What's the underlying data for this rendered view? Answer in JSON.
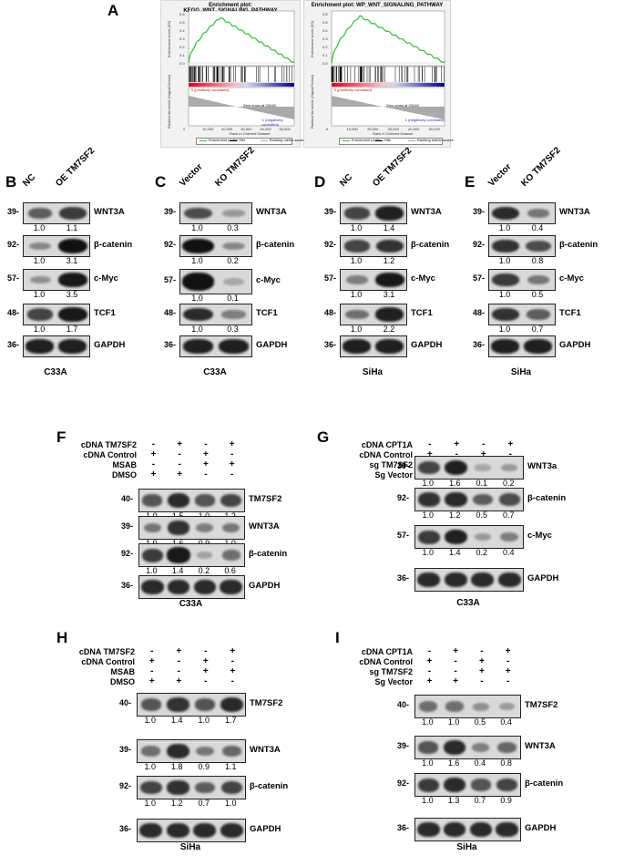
{
  "panels": {
    "A": "A",
    "B": "B",
    "C": "C",
    "D": "D",
    "E": "E",
    "F": "F",
    "G": "G",
    "H": "H",
    "I": "I"
  },
  "gsea": [
    {
      "title": "Enrichment plot: KEGG_WNT_SIGNALING_PATHWAY",
      "ylabel_top": "Enrichment score (ES)",
      "ylabel_bottom": "Ranked list metric (Signal2Noise)",
      "xlabel": "Rank in Ordered Dataset",
      "pos_label": "'0 (positively correlated)",
      "neg_label": "'1 (negatively correlated)",
      "zero_label": "Zero cross at 23418",
      "xticks": [
        "0",
        "10,000",
        "20,000",
        "30,000",
        "40,000",
        "50,000"
      ],
      "yticks_top": [
        "0.6",
        "0.5",
        "0.4",
        "0.3",
        "0.2",
        "0.1",
        "0.0"
      ],
      "legend": [
        "Enrichment profile",
        "Hits",
        "Ranking metric scores"
      ]
    },
    {
      "title": "Enrichment plot: WP_WNT_SIGNALING_PATHWAY",
      "ylabel_top": "Enrichment score (ES)",
      "ylabel_bottom": "Ranked list metric (Signal2Noise)",
      "xlabel": "Rank in Ordered Dataset",
      "pos_label": "'0 (positively correlated)",
      "neg_label": "'1 (negatively correlated)",
      "zero_label": "Zero cross at 23418",
      "xticks": [
        "0",
        "10,000",
        "20,000",
        "30,000",
        "40,000",
        "50,000"
      ],
      "yticks_top": [
        "0.6",
        "0.5",
        "0.4",
        "0.3",
        "0.2",
        "0.1",
        "0.0"
      ],
      "legend": [
        "Enrichment profile",
        "Hits",
        "Ranking metric scores"
      ]
    }
  ],
  "blotsBE": [
    {
      "cols": [
        "NC",
        "OE TM7SF2"
      ],
      "cell": "C33A",
      "rows": [
        {
          "mw": "39-",
          "protein": "WNT3A",
          "vals": [
            "1.0",
            "1.1"
          ],
          "lvl": [
            0.55,
            0.75
          ]
        },
        {
          "mw": "92-",
          "protein": "β-catenin",
          "vals": [
            "1.0",
            "3.1"
          ],
          "lvl": [
            0.3,
            1.0
          ]
        },
        {
          "mw": "57-",
          "protein": "c-Myc",
          "vals": [
            "1.0",
            "3.5"
          ],
          "lvl": [
            0.25,
            0.95
          ]
        },
        {
          "mw": "48-",
          "protein": "TCF1",
          "vals": [
            "1.0",
            "1.7"
          ],
          "lvl": [
            0.7,
            0.95
          ]
        },
        {
          "mw": "36-",
          "protein": "GAPDH",
          "vals": [],
          "lvl": [
            0.9,
            0.9
          ]
        }
      ]
    },
    {
      "cols": [
        "Vector",
        "KO TM7SF2"
      ],
      "cell": "C33A",
      "rows": [
        {
          "mw": "39-",
          "protein": "WNT3A",
          "vals": [
            "1.0",
            "0.3"
          ],
          "lvl": [
            0.65,
            0.2
          ]
        },
        {
          "mw": "92-",
          "protein": "β-catenin",
          "vals": [
            "1.0",
            "0.2"
          ],
          "lvl": [
            1.0,
            0.3
          ]
        },
        {
          "mw": "57-",
          "protein": "c-Myc",
          "vals": [
            "1.0",
            "0.1"
          ],
          "lvl": [
            1.0,
            0.12
          ]
        },
        {
          "mw": "48-",
          "protein": "TCF1",
          "vals": [
            "1.0",
            "0.3"
          ],
          "lvl": [
            0.85,
            0.35
          ]
        },
        {
          "mw": "36-",
          "protein": "GAPDH",
          "vals": [],
          "lvl": [
            0.9,
            0.9
          ]
        }
      ]
    },
    {
      "cols": [
        "NC",
        "OE TM7SF2"
      ],
      "cell": "SiHa",
      "rows": [
        {
          "mw": "39-",
          "protein": "WNT3A",
          "vals": [
            "1.0",
            "1.4"
          ],
          "lvl": [
            0.7,
            0.9
          ]
        },
        {
          "mw": "92-",
          "protein": "β-catenin",
          "vals": [
            "1.0",
            "1.2"
          ],
          "lvl": [
            0.7,
            0.8
          ]
        },
        {
          "mw": "57-",
          "protein": "c-Myc",
          "vals": [
            "1.0",
            "3.1"
          ],
          "lvl": [
            0.35,
            0.95
          ]
        },
        {
          "mw": "48-",
          "protein": "TCF1",
          "vals": [
            "1.0",
            "2.2"
          ],
          "lvl": [
            0.45,
            0.9
          ]
        },
        {
          "mw": "36-",
          "protein": "GAPDH",
          "vals": [],
          "lvl": [
            0.9,
            0.9
          ]
        }
      ]
    },
    {
      "cols": [
        "Vector",
        "KO TM7SF2"
      ],
      "cell": "SiHa",
      "rows": [
        {
          "mw": "39-",
          "protein": "WNT3A",
          "vals": [
            "1.0",
            "0.4"
          ],
          "lvl": [
            0.85,
            0.4
          ]
        },
        {
          "mw": "92-",
          "protein": "β-catenin",
          "vals": [
            "1.0",
            "0.8"
          ],
          "lvl": [
            0.8,
            0.65
          ]
        },
        {
          "mw": "57-",
          "protein": "c-Myc",
          "vals": [
            "1.0",
            "0.5"
          ],
          "lvl": [
            0.75,
            0.4
          ]
        },
        {
          "mw": "48-",
          "protein": "TCF1",
          "vals": [
            "1.0",
            "0.7"
          ],
          "lvl": [
            0.8,
            0.55
          ]
        },
        {
          "mw": "36-",
          "protein": "GAPDH",
          "vals": [],
          "lvl": [
            0.9,
            0.9
          ]
        }
      ]
    }
  ],
  "blotsFI": [
    {
      "treatments": [
        {
          "label": "cDNA TM7SF2",
          "signs": [
            "-",
            "+",
            "-",
            "+"
          ]
        },
        {
          "label": "cDNA Control",
          "signs": [
            "+",
            "-",
            "+",
            "-"
          ]
        },
        {
          "label": "MSAB",
          "signs": [
            "-",
            "-",
            "+",
            "+"
          ]
        },
        {
          "label": "DMSO",
          "signs": [
            "+",
            "+",
            "-",
            "-"
          ]
        }
      ],
      "cell": "C33A",
      "rows": [
        {
          "mw": "40-",
          "protein": "TM7SF2",
          "vals": [
            "1.0",
            "1.5",
            "1.0",
            "1.2"
          ],
          "lvl": [
            0.6,
            0.85,
            0.6,
            0.7
          ]
        },
        {
          "mw": "39-",
          "protein": "WNT3A",
          "vals": [
            "1.0",
            "1.6",
            "0.9",
            "1.0"
          ],
          "lvl": [
            0.4,
            0.8,
            0.35,
            0.4
          ]
        },
        {
          "mw": "92-",
          "protein": "β-catenin",
          "vals": [
            "1.0",
            "1.4",
            "0.2",
            "0.6"
          ],
          "lvl": [
            0.75,
            0.95,
            0.15,
            0.45
          ]
        },
        {
          "mw": "36-",
          "protein": "GAPDH",
          "vals": [],
          "lvl": [
            0.85,
            0.85,
            0.85,
            0.85
          ]
        }
      ]
    },
    {
      "treatments": [
        {
          "label": "cDNA CPT1A",
          "signs": [
            "-",
            "+",
            "-",
            "+"
          ]
        },
        {
          "label": "cDNA Control",
          "signs": [
            "+",
            "-",
            "+",
            "-"
          ]
        },
        {
          "label": "sg TM7SF2",
          "signs": [
            "-",
            "-",
            "+",
            "+"
          ]
        },
        {
          "label": "Sg Vector",
          "signs": [
            "+",
            "+",
            "-",
            "-"
          ]
        }
      ],
      "cell": "C33A",
      "rows": [
        {
          "mw": "39-",
          "protein": "WNT3a",
          "vals": [
            "1.0",
            "1.6",
            "0.1",
            "0.2"
          ],
          "lvl": [
            0.7,
            0.9,
            0.12,
            0.2
          ]
        },
        {
          "mw": "92-",
          "protein": "β-catenin",
          "vals": [
            "1.0",
            "1.2",
            "0.5",
            "0.7"
          ],
          "lvl": [
            0.8,
            0.85,
            0.55,
            0.65
          ]
        },
        {
          "mw": "57-",
          "protein": "c-Myc",
          "vals": [
            "1.0",
            "1.4",
            "0.2",
            "0.4"
          ],
          "lvl": [
            0.75,
            0.9,
            0.2,
            0.35
          ]
        },
        {
          "mw": "36-",
          "protein": "GAPDH",
          "vals": [],
          "lvl": [
            0.85,
            0.85,
            0.85,
            0.85
          ]
        }
      ]
    },
    {
      "treatments": [
        {
          "label": "cDNA TM7SF2",
          "signs": [
            "-",
            "+",
            "-",
            "+"
          ]
        },
        {
          "label": "cDNA Control",
          "signs": [
            "+",
            "-",
            "+",
            "-"
          ]
        },
        {
          "label": "MSAB",
          "signs": [
            "-",
            "-",
            "+",
            "+"
          ]
        },
        {
          "label": "DMSO",
          "signs": [
            "+",
            "+",
            "-",
            "-"
          ]
        }
      ],
      "cell": "SiHa",
      "rows": [
        {
          "mw": "40-",
          "protein": "TM7SF2",
          "vals": [
            "1.0",
            "1.4",
            "1.0",
            "1.7"
          ],
          "lvl": [
            0.6,
            0.8,
            0.6,
            0.85
          ]
        },
        {
          "mw": "39-",
          "protein": "WNT3A",
          "vals": [
            "1.0",
            "1.8",
            "0.9",
            "1.1"
          ],
          "lvl": [
            0.45,
            0.85,
            0.4,
            0.5
          ]
        },
        {
          "mw": "92-",
          "protein": "β-catenin",
          "vals": [
            "1.0",
            "1.2",
            "0.7",
            "1.0"
          ],
          "lvl": [
            0.7,
            0.8,
            0.55,
            0.7
          ]
        },
        {
          "mw": "36-",
          "protein": "GAPDH",
          "vals": [],
          "lvl": [
            0.85,
            0.85,
            0.85,
            0.85
          ]
        }
      ]
    },
    {
      "treatments": [
        {
          "label": "cDNA CPT1A",
          "signs": [
            "-",
            "+",
            "-",
            "+"
          ]
        },
        {
          "label": "cDNA Control",
          "signs": [
            "+",
            "-",
            "+",
            "-"
          ]
        },
        {
          "label": "sg TM7SF2",
          "signs": [
            "-",
            "-",
            "+",
            "+"
          ]
        },
        {
          "label": "Sg Vector",
          "signs": [
            "+",
            "+",
            "-",
            "-"
          ]
        }
      ],
      "cell": "SiHa",
      "rows": [
        {
          "mw": "40-",
          "protein": "TM7SF2",
          "vals": [
            "1.0",
            "1.0",
            "0.5",
            "0.4"
          ],
          "lvl": [
            0.45,
            0.45,
            0.25,
            0.2
          ]
        },
        {
          "mw": "39-",
          "protein": "WNT3A",
          "vals": [
            "1.0",
            "1.6",
            "0.4",
            "0.8"
          ],
          "lvl": [
            0.6,
            0.85,
            0.35,
            0.5
          ]
        },
        {
          "mw": "92-",
          "protein": "β-catenin",
          "vals": [
            "1.0",
            "1.3",
            "0.7",
            "0.9"
          ],
          "lvl": [
            0.75,
            0.85,
            0.6,
            0.7
          ]
        },
        {
          "mw": "36-",
          "protein": "GAPDH",
          "vals": [],
          "lvl": [
            0.85,
            0.85,
            0.85,
            0.85
          ]
        }
      ]
    }
  ]
}
